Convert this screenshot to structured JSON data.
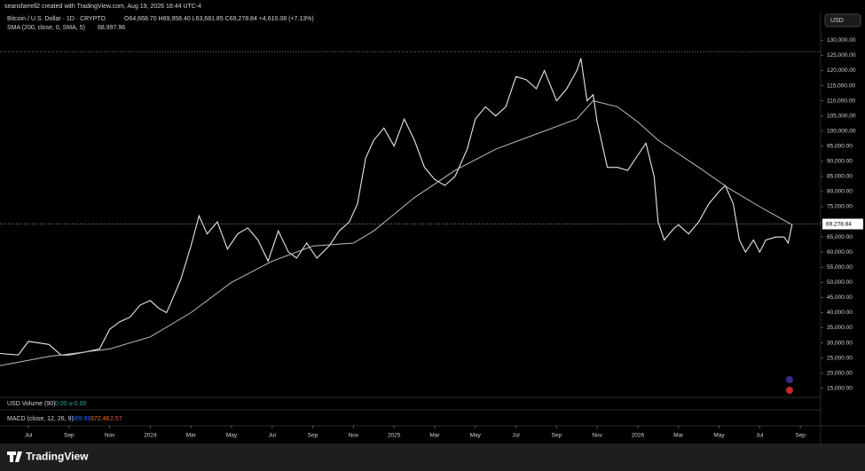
{
  "header": {
    "credit": "seansfarrell2 created with TradingView.com, Aug 19, 2026 18:44 UTC-4",
    "currency": "USD",
    "brand": "TradingView"
  },
  "panes": {
    "volume": {
      "title": "USD Volume (90)",
      "values": "0.00 ⌀ 0.00"
    },
    "macd": {
      "title": "MACD (close, 12, 26, 9)",
      "v1": "369.89",
      "v2": "372.46",
      "v3": "2.57"
    }
  },
  "chart_data": {
    "type": "line",
    "series": [
      {
        "name": "Bitcoin / U.S. Dollar · 1D · CRYPTO",
        "legend_values": "O64,668.70 H69,958.40 L63,681.85 C69,278.84 +4,610.08 (+7.13%)",
        "color": "#e8e8e8",
        "x": [
          -0.4,
          0.5,
          1,
          1.5,
          2,
          2.6,
          3,
          3.8,
          4.5,
          5,
          5.5,
          6,
          6.5,
          7,
          7.4,
          7.8,
          8,
          8.5,
          9,
          9.4,
          9.8,
          10.3,
          10.8,
          11.3,
          11.8,
          12.3,
          12.8,
          13.3,
          13.8,
          14.2,
          14.7,
          15.2,
          15.8,
          16.3,
          16.8,
          17.2,
          17.6,
          18,
          18.5,
          19,
          19.5,
          20,
          20.5,
          21,
          21.5,
          22,
          22.6,
          23,
          23.5,
          24,
          24.5,
          25,
          25.5,
          26,
          26.4,
          27,
          27.5,
          28,
          28.2,
          28.5,
          28.8,
          29,
          29.5,
          30,
          30.5,
          31,
          31.4,
          31.8,
          32,
          32.3,
          32.8,
          33,
          33.5,
          34,
          34.5,
          35,
          35.3,
          35.7,
          36,
          36.3,
          36.7,
          37,
          37.3,
          37.8,
          38.2,
          38.4,
          38.6
        ],
        "values": [
          26500,
          26000,
          30500,
          30000,
          29500,
          26000,
          26000,
          27000,
          28000,
          34500,
          37000,
          38500,
          42500,
          44000,
          41500,
          40000,
          43000,
          51000,
          62000,
          72000,
          66000,
          70000,
          61000,
          66000,
          68000,
          64000,
          57000,
          67000,
          60000,
          58000,
          63000,
          58000,
          62000,
          67000,
          70000,
          76000,
          91000,
          97000,
          101000,
          95000,
          104000,
          97000,
          88000,
          84000,
          82000,
          85000,
          94000,
          104000,
          108000,
          105000,
          108000,
          118000,
          117000,
          114000,
          120000,
          110000,
          114000,
          120000,
          124000,
          110000,
          112000,
          103000,
          88000,
          88000,
          87000,
          92000,
          96000,
          85000,
          70000,
          64000,
          68000,
          69000,
          66000,
          70000,
          76000,
          80000,
          82000,
          76000,
          64000,
          60000,
          64000,
          60000,
          64000,
          65000,
          65000,
          63000,
          69278.84
        ]
      },
      {
        "name": "SMA (200, close, 0, SMA, 5)",
        "legend_values": "68,997.96",
        "color": "#bdbdbd",
        "x": [
          -0.4,
          2,
          5,
          7,
          9,
          11,
          13,
          15,
          17,
          18,
          20,
          22,
          24,
          26,
          28,
          28.8,
          30,
          31,
          32,
          34,
          35.5,
          37,
          38.6
        ],
        "values": [
          22500,
          25500,
          28000,
          32000,
          40000,
          50000,
          57000,
          62000,
          63000,
          67000,
          78000,
          87000,
          94000,
          99000,
          104000,
          110000,
          108000,
          103000,
          97000,
          88000,
          81000,
          75000,
          69000
        ]
      }
    ],
    "last_price": {
      "value": 69278.84,
      "label": "69,278.84"
    },
    "high_line": 126200,
    "xlim": [
      -0.4,
      40
    ],
    "xticks": [
      {
        "value": 1,
        "label": "Jul"
      },
      {
        "value": 3,
        "label": "Sep"
      },
      {
        "value": 5,
        "label": "Nov"
      },
      {
        "value": 7,
        "label": "2024"
      },
      {
        "value": 9,
        "label": "Mar"
      },
      {
        "value": 11,
        "label": "May"
      },
      {
        "value": 13,
        "label": "Jul"
      },
      {
        "value": 15,
        "label": "Sep"
      },
      {
        "value": 17,
        "label": "Nov"
      },
      {
        "value": 19,
        "label": "2025"
      },
      {
        "value": 21,
        "label": "Mar"
      },
      {
        "value": 23,
        "label": "May"
      },
      {
        "value": 25,
        "label": "Jul"
      },
      {
        "value": 27,
        "label": "Sep"
      },
      {
        "value": 29,
        "label": "Nov"
      },
      {
        "value": 31,
        "label": "2026"
      },
      {
        "value": 33,
        "label": "Mar"
      },
      {
        "value": 35,
        "label": "May"
      },
      {
        "value": 37,
        "label": "Jul"
      },
      {
        "value": 39,
        "label": "Sep"
      }
    ],
    "ylim": [
      12000,
      134500
    ],
    "yticks": [
      {
        "value": 15000,
        "label": "15,000.00"
      },
      {
        "value": 20000,
        "label": "20,000.00"
      },
      {
        "value": 25000,
        "label": "25,000.00"
      },
      {
        "value": 30000,
        "label": "30,000.00"
      },
      {
        "value": 35000,
        "label": "35,000.00"
      },
      {
        "value": 40000,
        "label": "40,000.00"
      },
      {
        "value": 45000,
        "label": "45,000.00"
      },
      {
        "value": 50000,
        "label": "50,000.00"
      },
      {
        "value": 55000,
        "label": "55,000.00"
      },
      {
        "value": 60000,
        "label": "60,000.00"
      },
      {
        "value": 65000,
        "label": "65,000.00"
      },
      {
        "value": 70000,
        "label": "70,000.00"
      },
      {
        "value": 75000,
        "label": "75,000.00"
      },
      {
        "value": 80000,
        "label": "80,000.00"
      },
      {
        "value": 85000,
        "label": "85,000.00"
      },
      {
        "value": 90000,
        "label": "90,000.00"
      },
      {
        "value": 95000,
        "label": "95,000.00"
      },
      {
        "value": 100000,
        "label": "100,000.00"
      },
      {
        "value": 105000,
        "label": "105,000.00"
      },
      {
        "value": 110000,
        "label": "110,000.00"
      },
      {
        "value": 115000,
        "label": "115,000.00"
      },
      {
        "value": 120000,
        "label": "120,000.00"
      },
      {
        "value": 125000,
        "label": "125,000.00"
      },
      {
        "value": 130000,
        "label": "130,000.00"
      }
    ],
    "grid": false
  }
}
